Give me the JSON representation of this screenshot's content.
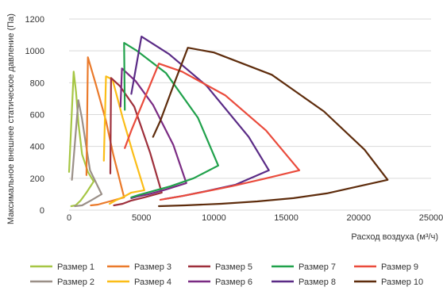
{
  "chart_data": {
    "type": "line",
    "ylabel": "Максимальное внешнее статическое давление (Па)",
    "xlabel": "Расход воздуха (м³/ч)",
    "xlim": [
      0,
      25000
    ],
    "ylim": [
      0,
      1200
    ],
    "x_ticks": [
      "0",
      "5000",
      "10000",
      "15000",
      "20000",
      "25000"
    ],
    "y_ticks": [
      "0",
      "200",
      "400",
      "600",
      "800",
      "1000",
      "1200"
    ],
    "grid": "horizontal",
    "legend_position": "bottom",
    "series": [
      {
        "name": "Размер 1",
        "color": "#a6c644",
        "points": [
          [
            0,
            240
          ],
          [
            320,
            870
          ],
          [
            480,
            740
          ],
          [
            650,
            540
          ],
          [
            900,
            350
          ],
          [
            1300,
            240
          ],
          [
            1700,
            180
          ],
          [
            1200,
            110
          ],
          [
            800,
            60
          ],
          [
            450,
            30
          ],
          [
            150,
            25
          ]
        ]
      },
      {
        "name": "Размер 2",
        "color": "#9a8f87",
        "points": [
          [
            200,
            190
          ],
          [
            640,
            690
          ],
          [
            880,
            580
          ],
          [
            1150,
            420
          ],
          [
            1450,
            250
          ],
          [
            2250,
            100
          ],
          [
            1500,
            60
          ],
          [
            900,
            30
          ],
          [
            400,
            25
          ]
        ]
      },
      {
        "name": "Размер 3",
        "color": "#ea7a2b",
        "points": [
          [
            1200,
            220
          ],
          [
            1300,
            960
          ],
          [
            1850,
            790
          ],
          [
            2550,
            560
          ],
          [
            3050,
            350
          ],
          [
            3800,
            80
          ],
          [
            2800,
            55
          ],
          [
            2000,
            35
          ],
          [
            1500,
            30
          ]
        ]
      },
      {
        "name": "Размер 4",
        "color": "#fbbd17",
        "points": [
          [
            2400,
            310
          ],
          [
            2550,
            840
          ],
          [
            3000,
            820
          ],
          [
            3700,
            580
          ],
          [
            4400,
            360
          ],
          [
            5200,
            125
          ],
          [
            4300,
            110
          ],
          [
            3700,
            80
          ],
          [
            3200,
            60
          ],
          [
            2800,
            40
          ]
        ]
      },
      {
        "name": "Размер 5",
        "color": "#9e2f3b",
        "points": [
          [
            2850,
            230
          ],
          [
            2900,
            830
          ],
          [
            3500,
            780
          ],
          [
            4500,
            650
          ],
          [
            5600,
            360
          ],
          [
            6400,
            110
          ],
          [
            5200,
            80
          ],
          [
            4300,
            60
          ],
          [
            3700,
            40
          ],
          [
            3100,
            30
          ]
        ]
      },
      {
        "name": "Размер 6",
        "color": "#7a2b83",
        "points": [
          [
            3550,
            650
          ],
          [
            3650,
            890
          ],
          [
            4600,
            810
          ],
          [
            5800,
            660
          ],
          [
            7200,
            410
          ],
          [
            8100,
            170
          ],
          [
            6700,
            130
          ],
          [
            5500,
            100
          ],
          [
            4700,
            85
          ],
          [
            4300,
            75
          ]
        ]
      },
      {
        "name": "Размер 7",
        "color": "#20a14b",
        "points": [
          [
            3850,
            630
          ],
          [
            3800,
            1050
          ],
          [
            4700,
            1000
          ],
          [
            6700,
            860
          ],
          [
            8900,
            580
          ],
          [
            10300,
            280
          ],
          [
            8600,
            200
          ],
          [
            7000,
            150
          ],
          [
            5800,
            120
          ],
          [
            4800,
            95
          ],
          [
            4300,
            80
          ]
        ]
      },
      {
        "name": "Размер 8",
        "color": "#5a2b86",
        "points": [
          [
            4300,
            730
          ],
          [
            5000,
            1090
          ],
          [
            6900,
            980
          ],
          [
            9500,
            780
          ],
          [
            12400,
            460
          ],
          [
            13800,
            250
          ],
          [
            11500,
            160
          ],
          [
            9500,
            120
          ],
          [
            7900,
            90
          ],
          [
            6600,
            70
          ]
        ]
      },
      {
        "name": "Размер 9",
        "color": "#ea4b3c",
        "points": [
          [
            3850,
            390
          ],
          [
            4300,
            500
          ],
          [
            6200,
            920
          ],
          [
            7800,
            870
          ],
          [
            10800,
            720
          ],
          [
            13600,
            500
          ],
          [
            15900,
            250
          ],
          [
            13400,
            195
          ],
          [
            11200,
            150
          ],
          [
            9300,
            115
          ],
          [
            7600,
            85
          ],
          [
            6300,
            65
          ]
        ]
      },
      {
        "name": "Размер 10",
        "color": "#5e2c0c",
        "points": [
          [
            5800,
            460
          ],
          [
            6300,
            560
          ],
          [
            7200,
            780
          ],
          [
            8200,
            1020
          ],
          [
            10000,
            990
          ],
          [
            14000,
            850
          ],
          [
            17600,
            620
          ],
          [
            20400,
            380
          ],
          [
            22000,
            190
          ],
          [
            20000,
            150
          ],
          [
            17800,
            105
          ],
          [
            15500,
            75
          ],
          [
            13000,
            55
          ],
          [
            10500,
            40
          ],
          [
            8000,
            30
          ],
          [
            6200,
            25
          ]
        ]
      }
    ]
  }
}
